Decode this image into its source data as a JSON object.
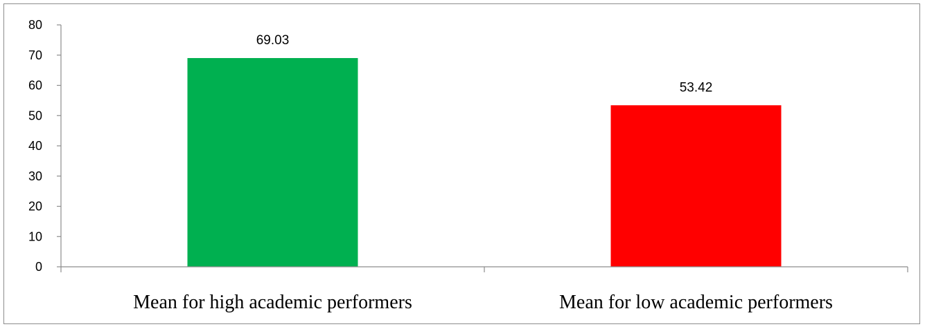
{
  "chart_data": {
    "type": "bar",
    "categories": [
      "Mean for high academic performers",
      "Mean for low academic performers"
    ],
    "values": [
      69.03,
      53.42
    ],
    "value_labels": [
      "69.03",
      "53.42"
    ],
    "colors": [
      "#00b050",
      "#ff0000"
    ],
    "title": "",
    "xlabel": "",
    "ylabel": "",
    "ylim": [
      0,
      80
    ],
    "yticks": [
      "0",
      "10",
      "20",
      "30",
      "40",
      "50",
      "60",
      "70",
      "80"
    ],
    "grid": false,
    "legend": "none"
  }
}
